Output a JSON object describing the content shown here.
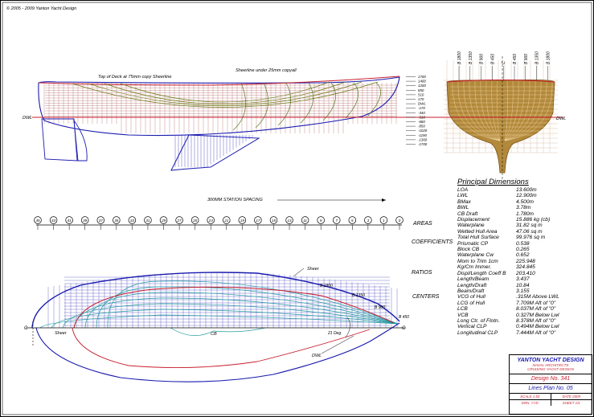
{
  "copyright": "© 2005 - 2009 Yanton Yacht Design",
  "labels": {
    "deck_note": "Top of Deck at 75mm copy Sheerline",
    "sheer_note": "Sheerline under 25mm copyall",
    "dwl_left": "DWL",
    "dwl_right": "DWL",
    "station_spacing": "300MM STATION SPACING",
    "sheer_plan": "Sheer",
    "sheer_plan2": "Sheer",
    "dwl_plan": "DWL",
    "cb": "CB",
    "deg": "21 Deg.",
    "b1800": "B 1800",
    "b1350": "B 1350",
    "b900": "B 900",
    "b450": "B 450",
    "c_left": "C",
    "c_right": "C"
  },
  "heights": [
    "1700",
    "1400",
    "1200",
    "850",
    "510",
    "170",
    "DWL",
    "-170",
    "-340",
    "-510",
    "-680",
    "-850",
    "-1020",
    "-1190",
    "-1360",
    "-1700"
  ],
  "body_top_labels": [
    "B 1800",
    "B 1350",
    "B 900",
    "B 450",
    "C",
    "B 450",
    "B 900",
    "B 1350",
    "B 1800"
  ],
  "stations": [
    "45",
    "43",
    "41",
    "39",
    "37",
    "35",
    "33",
    "31",
    "29",
    "27",
    "25",
    "23",
    "21",
    "19",
    "17",
    "15",
    "13",
    "11",
    "9",
    "7",
    "5",
    "3",
    "1",
    "0"
  ],
  "groups": {
    "areas": "AREAS",
    "coefficients": "COEFFICIENTS",
    "ratios": "RATIOS",
    "centers": "CENTERS"
  },
  "principal": {
    "title": "Principal Dimensions",
    "rows": [
      {
        "k": "LOA",
        "v": "13.600m"
      },
      {
        "k": "LWL",
        "v": "12.900m"
      },
      {
        "k": "BMax",
        "v": "4.500m"
      },
      {
        "k": "BWL",
        "v": "3.78m"
      },
      {
        "k": "CB Draft",
        "v": "1.780m"
      },
      {
        "k": "Displacement",
        "v": "15.886 kg (cb)"
      },
      {
        "k": "Waterplane",
        "v": "31.82 sq m"
      },
      {
        "k": "Wetted Hull Area",
        "v": "47.06 sq m"
      },
      {
        "k": "Total Hull Surface",
        "v": "99.976 sq m"
      },
      {
        "k": "Prismatic CP",
        "v": "0.538"
      },
      {
        "k": "Block CB",
        "v": "0.265"
      },
      {
        "k": "Waterplane Cw",
        "v": "0.652"
      },
      {
        "k": "Mom to Trim 1cm",
        "v": "225.948"
      },
      {
        "k": "Kg/Cm Immer.",
        "v": "324.845"
      },
      {
        "k": "Displ/Length Coeff B",
        "v": "203.410"
      },
      {
        "k": "Length/Beam",
        "v": "3.437"
      },
      {
        "k": "Length/Draft",
        "v": "10.84"
      },
      {
        "k": "Beam/Draft",
        "v": "3.155"
      },
      {
        "k": "VCG of Hull",
        "v": ".315M Above LWL"
      },
      {
        "k": "LCG of Hull",
        "v": "7.709M Aft of \"0\""
      },
      {
        "k": "LCB",
        "v": "8.037M Aft of \"0\""
      },
      {
        "k": "VCB",
        "v": "0.327M Below Lwl"
      },
      {
        "k": "Long Ctr. of Flotn.",
        "v": "8.378M Aft of \"0\""
      },
      {
        "k": "Vertical CLP",
        "v": "0.494M Below Lwl"
      },
      {
        "k": "Longitudinal CLP",
        "v": "7.444M Aft of \"0\""
      }
    ]
  },
  "title_block": {
    "company": "YANTON YACHT DESIGN",
    "line1": "NAVAL ARCHITECTS",
    "line2": "CRUISING YACHT DESIGN",
    "design_no": "Design No. 341",
    "sheet_title": "Lines Plan No. 05",
    "f1": "SCALE 1:50",
    "f2": "DATE 2009",
    "f3": "DRN. YYD",
    "f4": "SHEET 1/1"
  },
  "colors": {
    "sheer": "#c81e2e",
    "frame": "#1a1ab0",
    "hull": "#7a7a12",
    "body": "#9a6a10",
    "water": "#1e9aa0"
  }
}
